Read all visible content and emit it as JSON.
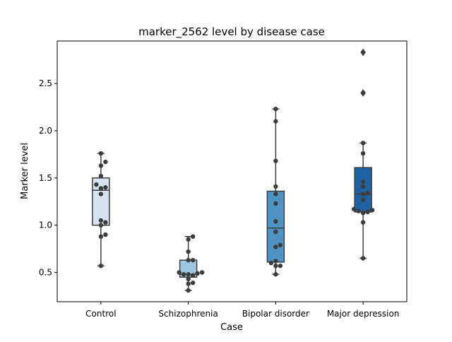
{
  "chart_data": {
    "type": "box",
    "title": "marker_2562 level by disease case",
    "xlabel": "Case",
    "ylabel": "Marker level",
    "ylim": [
      0.19,
      2.95
    ],
    "yticks": [
      0.5,
      1.0,
      1.5,
      2.0,
      2.5
    ],
    "ytick_labels": [
      "0.5",
      "1.0",
      "1.5",
      "2.0",
      "2.5"
    ],
    "grid": false,
    "categories": [
      "Control",
      "Schizophrenia",
      "Bipolar disorder",
      "Major depression"
    ],
    "colors": [
      "#d6e4f2",
      "#9dc7e0",
      "#4e93c4",
      "#1f62a4"
    ],
    "boxes": [
      {
        "q1": 1.0,
        "median": 1.37,
        "q3": 1.5,
        "whisker_low": 0.57,
        "whisker_high": 1.76,
        "outliers": []
      },
      {
        "q1": 0.45,
        "median": 0.48,
        "q3": 0.63,
        "whisker_low": 0.31,
        "whisker_high": 0.88,
        "outliers": []
      },
      {
        "q1": 0.61,
        "median": 0.97,
        "q3": 1.36,
        "whisker_low": 0.48,
        "whisker_high": 2.23,
        "outliers": []
      },
      {
        "q1": 1.14,
        "median": 1.33,
        "q3": 1.61,
        "whisker_low": 0.65,
        "whisker_high": 1.87,
        "outliers": [
          2.4,
          2.83
        ]
      }
    ],
    "points": [
      [
        1.76,
        1.67,
        1.63,
        1.52,
        1.43,
        1.4,
        1.39,
        1.33,
        1.05,
        1.03,
        1.0,
        0.9,
        0.88,
        0.57
      ],
      [
        0.88,
        0.85,
        0.72,
        0.63,
        0.63,
        0.5,
        0.5,
        0.49,
        0.48,
        0.48,
        0.47,
        0.43,
        0.39,
        0.38,
        0.31
      ],
      [
        2.23,
        2.1,
        1.68,
        1.41,
        1.33,
        1.23,
        1.04,
        0.93,
        0.79,
        0.77,
        0.62,
        0.6,
        0.57,
        0.57,
        0.48
      ],
      [
        2.83,
        2.4,
        1.87,
        1.76,
        1.46,
        1.41,
        1.34,
        1.33,
        1.27,
        1.17,
        1.16,
        1.15,
        1.14,
        1.13,
        1.03,
        0.65
      ]
    ]
  }
}
